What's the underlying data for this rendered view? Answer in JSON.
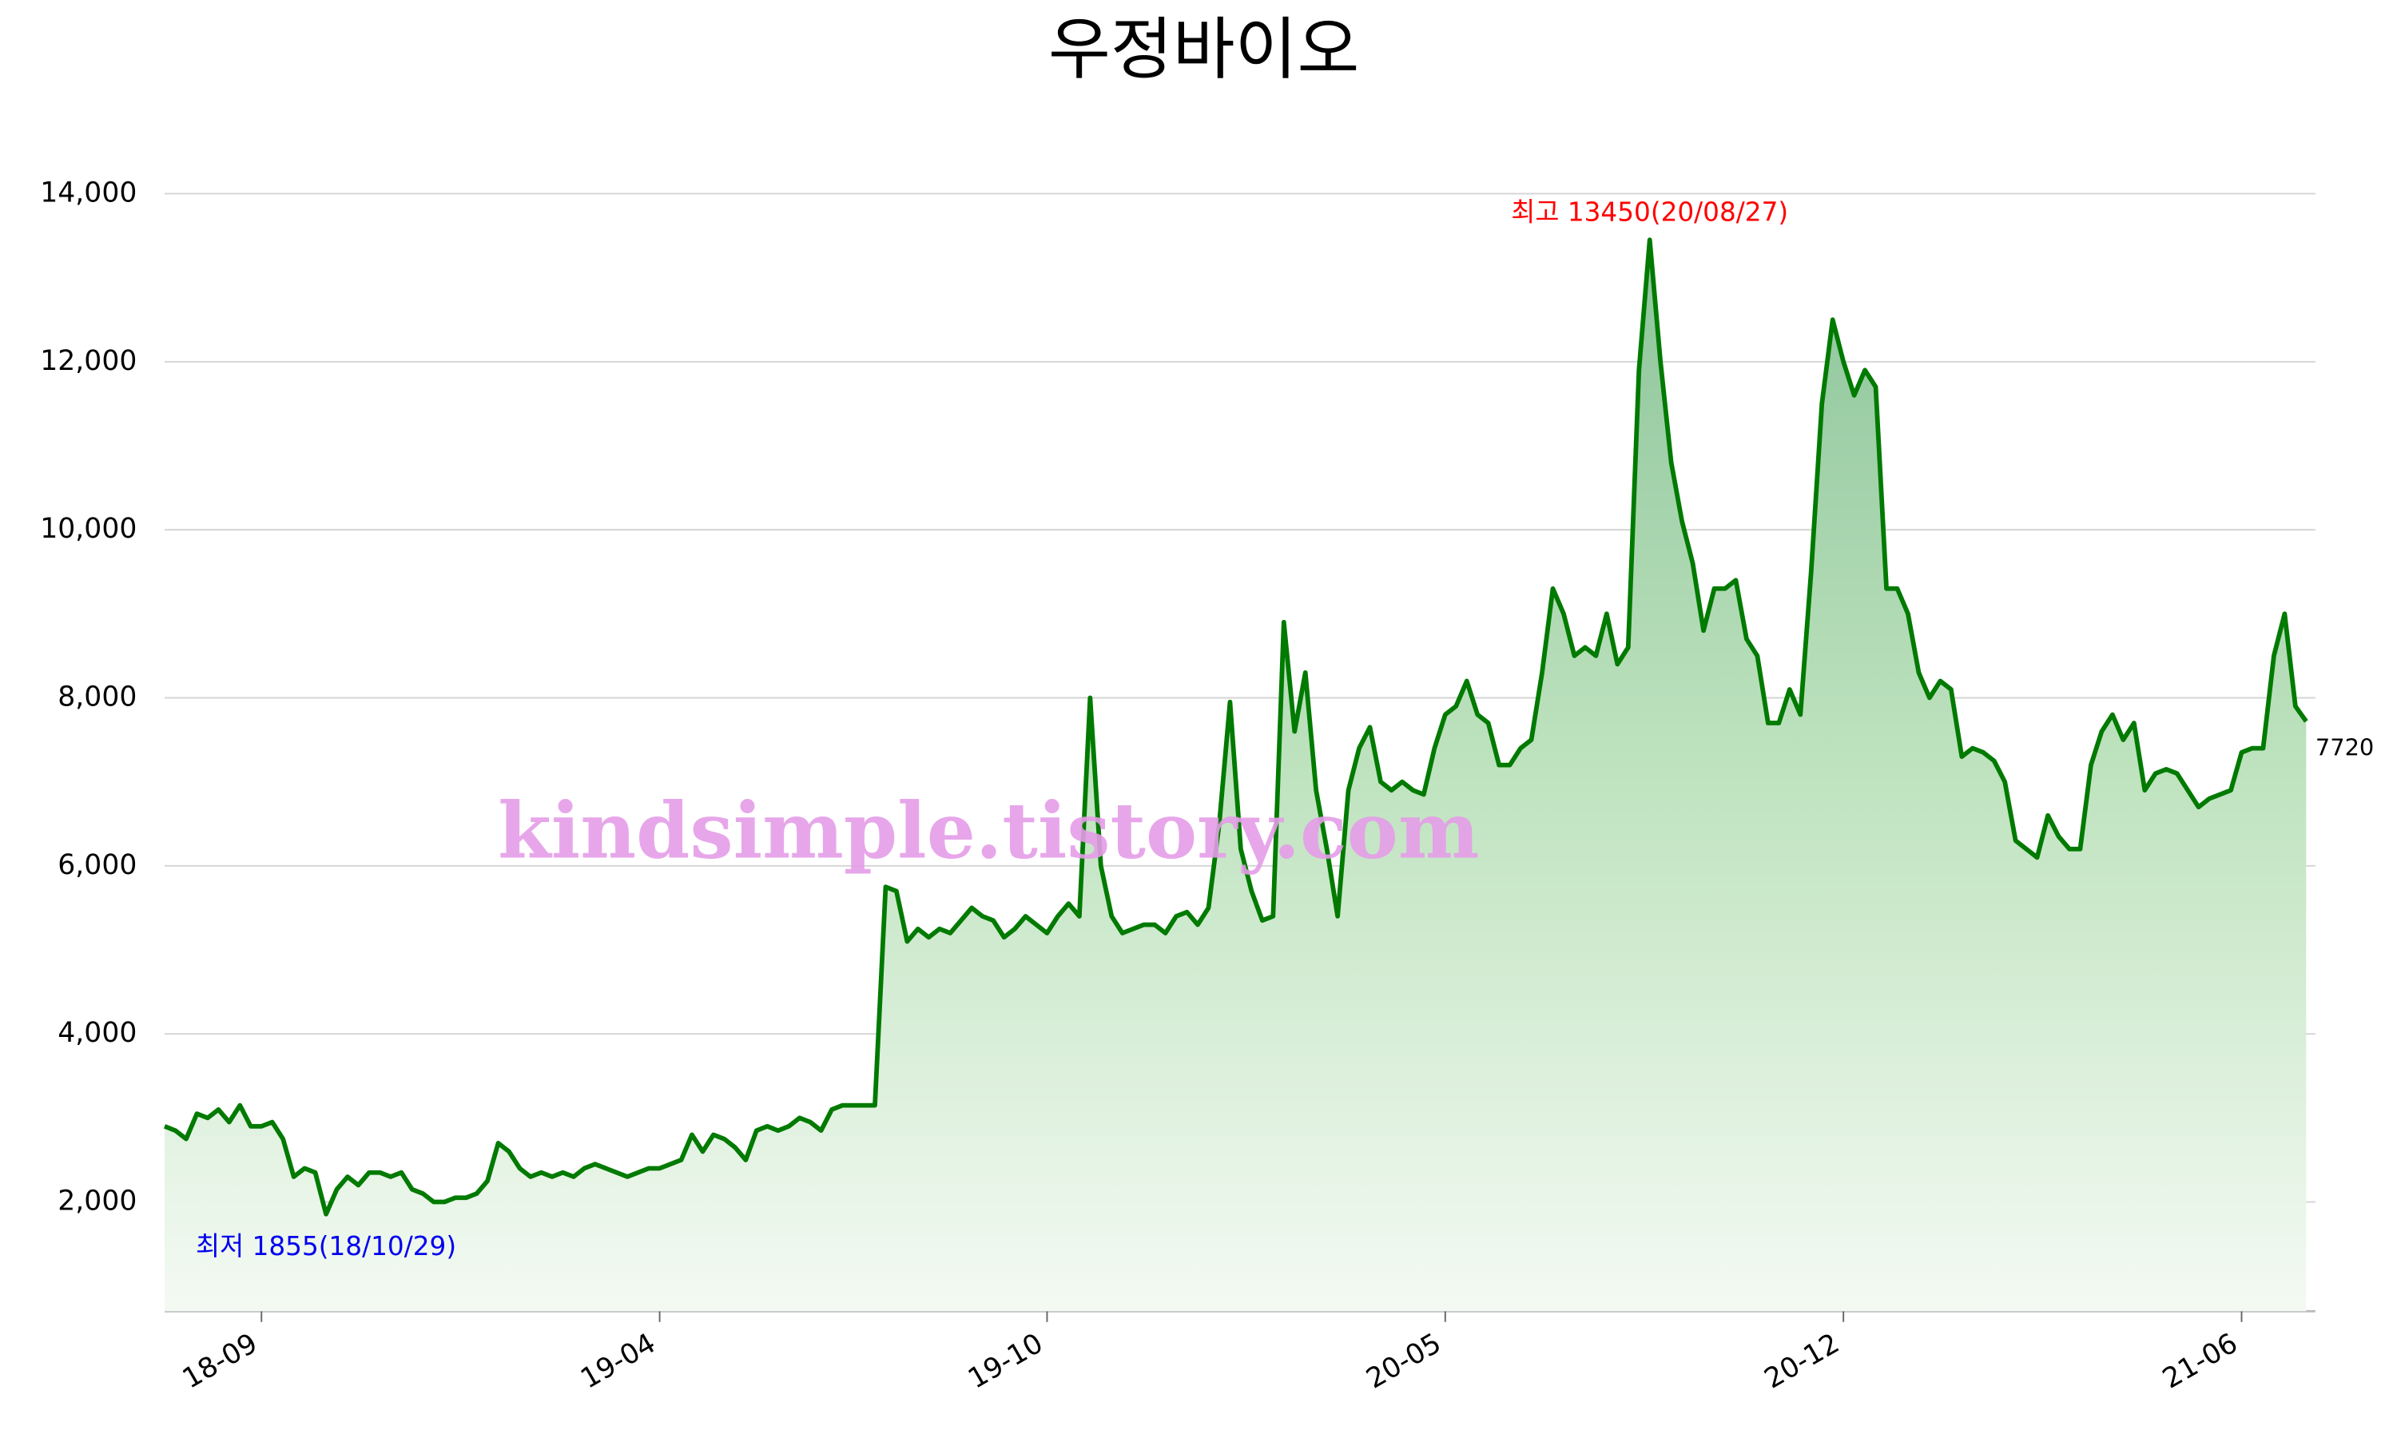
{
  "chart_data": {
    "type": "line",
    "title": "우정바이오",
    "categories": [
      null,
      null,
      null,
      null,
      null,
      null,
      null,
      null,
      null,
      "18-09",
      null,
      null,
      null,
      null,
      null,
      null,
      null,
      null,
      null,
      null,
      null,
      null,
      null,
      null,
      null,
      null,
      null,
      null,
      null,
      null,
      null,
      null,
      null,
      null,
      null,
      null,
      null,
      null,
      null,
      null,
      null,
      null,
      null,
      null,
      null,
      null,
      "19-04",
      null,
      null,
      null,
      null,
      null,
      null,
      null,
      null,
      null,
      null,
      null,
      null,
      null,
      null,
      null,
      null,
      null,
      null,
      null,
      null,
      null,
      null,
      null,
      null,
      null,
      null,
      null,
      null,
      null,
      null,
      null,
      null,
      null,
      null,
      null,
      "19-10",
      null,
      null,
      null,
      null,
      null,
      null,
      null,
      null,
      null,
      null,
      null,
      null,
      null,
      null,
      null,
      null,
      null,
      null,
      null,
      null,
      null,
      null,
      null,
      null,
      null,
      null,
      null,
      null,
      null,
      null,
      null,
      null,
      null,
      null,
      null,
      null,
      "20-05",
      null,
      null,
      null,
      null,
      null,
      null,
      null,
      null,
      null,
      null,
      null,
      null,
      null,
      null,
      null,
      null,
      null,
      null,
      null,
      null,
      null,
      null,
      null,
      null,
      null,
      null,
      null,
      null,
      null,
      null,
      null,
      null,
      null,
      null,
      null,
      null,
      "20-12",
      null,
      null,
      null,
      null,
      null,
      null,
      null,
      null,
      null,
      null,
      null,
      null,
      null,
      null,
      null,
      null,
      null,
      null,
      null,
      null,
      null,
      null,
      null,
      null,
      null,
      null,
      null,
      null,
      null,
      null,
      null,
      null,
      null,
      null,
      null,
      null,
      "21-06",
      null,
      null,
      null,
      null,
      null,
      null
    ],
    "values": [
      2900,
      2850,
      2750,
      3050,
      3000,
      3100,
      2950,
      3150,
      2900,
      2900,
      2950,
      2750,
      2300,
      2400,
      2350,
      1855,
      2150,
      2300,
      2200,
      2350,
      2350,
      2300,
      2350,
      2150,
      2100,
      2000,
      2000,
      2050,
      2050,
      2100,
      2250,
      2700,
      2600,
      2400,
      2300,
      2350,
      2300,
      2350,
      2300,
      2400,
      2450,
      2400,
      2350,
      2300,
      2350,
      2400,
      2400,
      2450,
      2500,
      2800,
      2600,
      2800,
      2750,
      2650,
      2500,
      2850,
      2900,
      2850,
      2900,
      3000,
      2950,
      2850,
      3100,
      3150,
      3150,
      3150,
      3150,
      5750,
      5700,
      5100,
      5250,
      5150,
      5250,
      5200,
      5350,
      5500,
      5400,
      5350,
      5150,
      5250,
      5400,
      5300,
      5200,
      5400,
      5550,
      5400,
      8000,
      6000,
      5400,
      5200,
      5250,
      5300,
      5300,
      5200,
      5400,
      5450,
      5300,
      5500,
      6500,
      7950,
      6200,
      5700,
      5350,
      5400,
      8900,
      7600,
      8300,
      6900,
      6200,
      5400,
      6900,
      7400,
      7650,
      7000,
      6900,
      7000,
      6900,
      6850,
      7400,
      7800,
      7900,
      8200,
      7800,
      7700,
      7200,
      7200,
      7400,
      7500,
      8300,
      9300,
      9000,
      8500,
      8600,
      8500,
      9000,
      8400,
      8600,
      11900,
      13450,
      12000,
      10800,
      10100,
      9600,
      8800,
      9300,
      9300,
      9400,
      8700,
      8500,
      7700,
      7700,
      8100,
      7800,
      9500,
      11500,
      12500,
      12000,
      11600,
      11900,
      11700,
      9300,
      9300,
      9000,
      8300,
      8000,
      8200,
      8100,
      7300,
      7400,
      7350,
      7250,
      7000,
      6300,
      6200,
      6100,
      6600,
      6350,
      6200,
      6200,
      7200,
      7600,
      7800,
      7500,
      7700,
      6900,
      7100,
      7150,
      7100,
      6900,
      6700,
      6800,
      6850,
      6900,
      7350,
      7400,
      7400,
      8500,
      9000,
      7900,
      7720
    ],
    "color": "#007a00",
    "ylim": [
      700,
      14300
    ],
    "yticks": [
      {
        "value": 2000,
        "label": "2,000"
      },
      {
        "value": 4000,
        "label": "4,000"
      },
      {
        "value": 6000,
        "label": "6,000"
      },
      {
        "value": 8000,
        "label": "8,000"
      },
      {
        "value": 10000,
        "label": "10,000"
      },
      {
        "value": 12000,
        "label": "12,000"
      },
      {
        "value": 14000,
        "label": "14,000"
      }
    ],
    "grid": true,
    "annotations": {
      "high": "최고 13450(20/08/27)",
      "low": "최저 1855(18/10/29)",
      "watermark": "kindsimple.tistory.com"
    }
  }
}
